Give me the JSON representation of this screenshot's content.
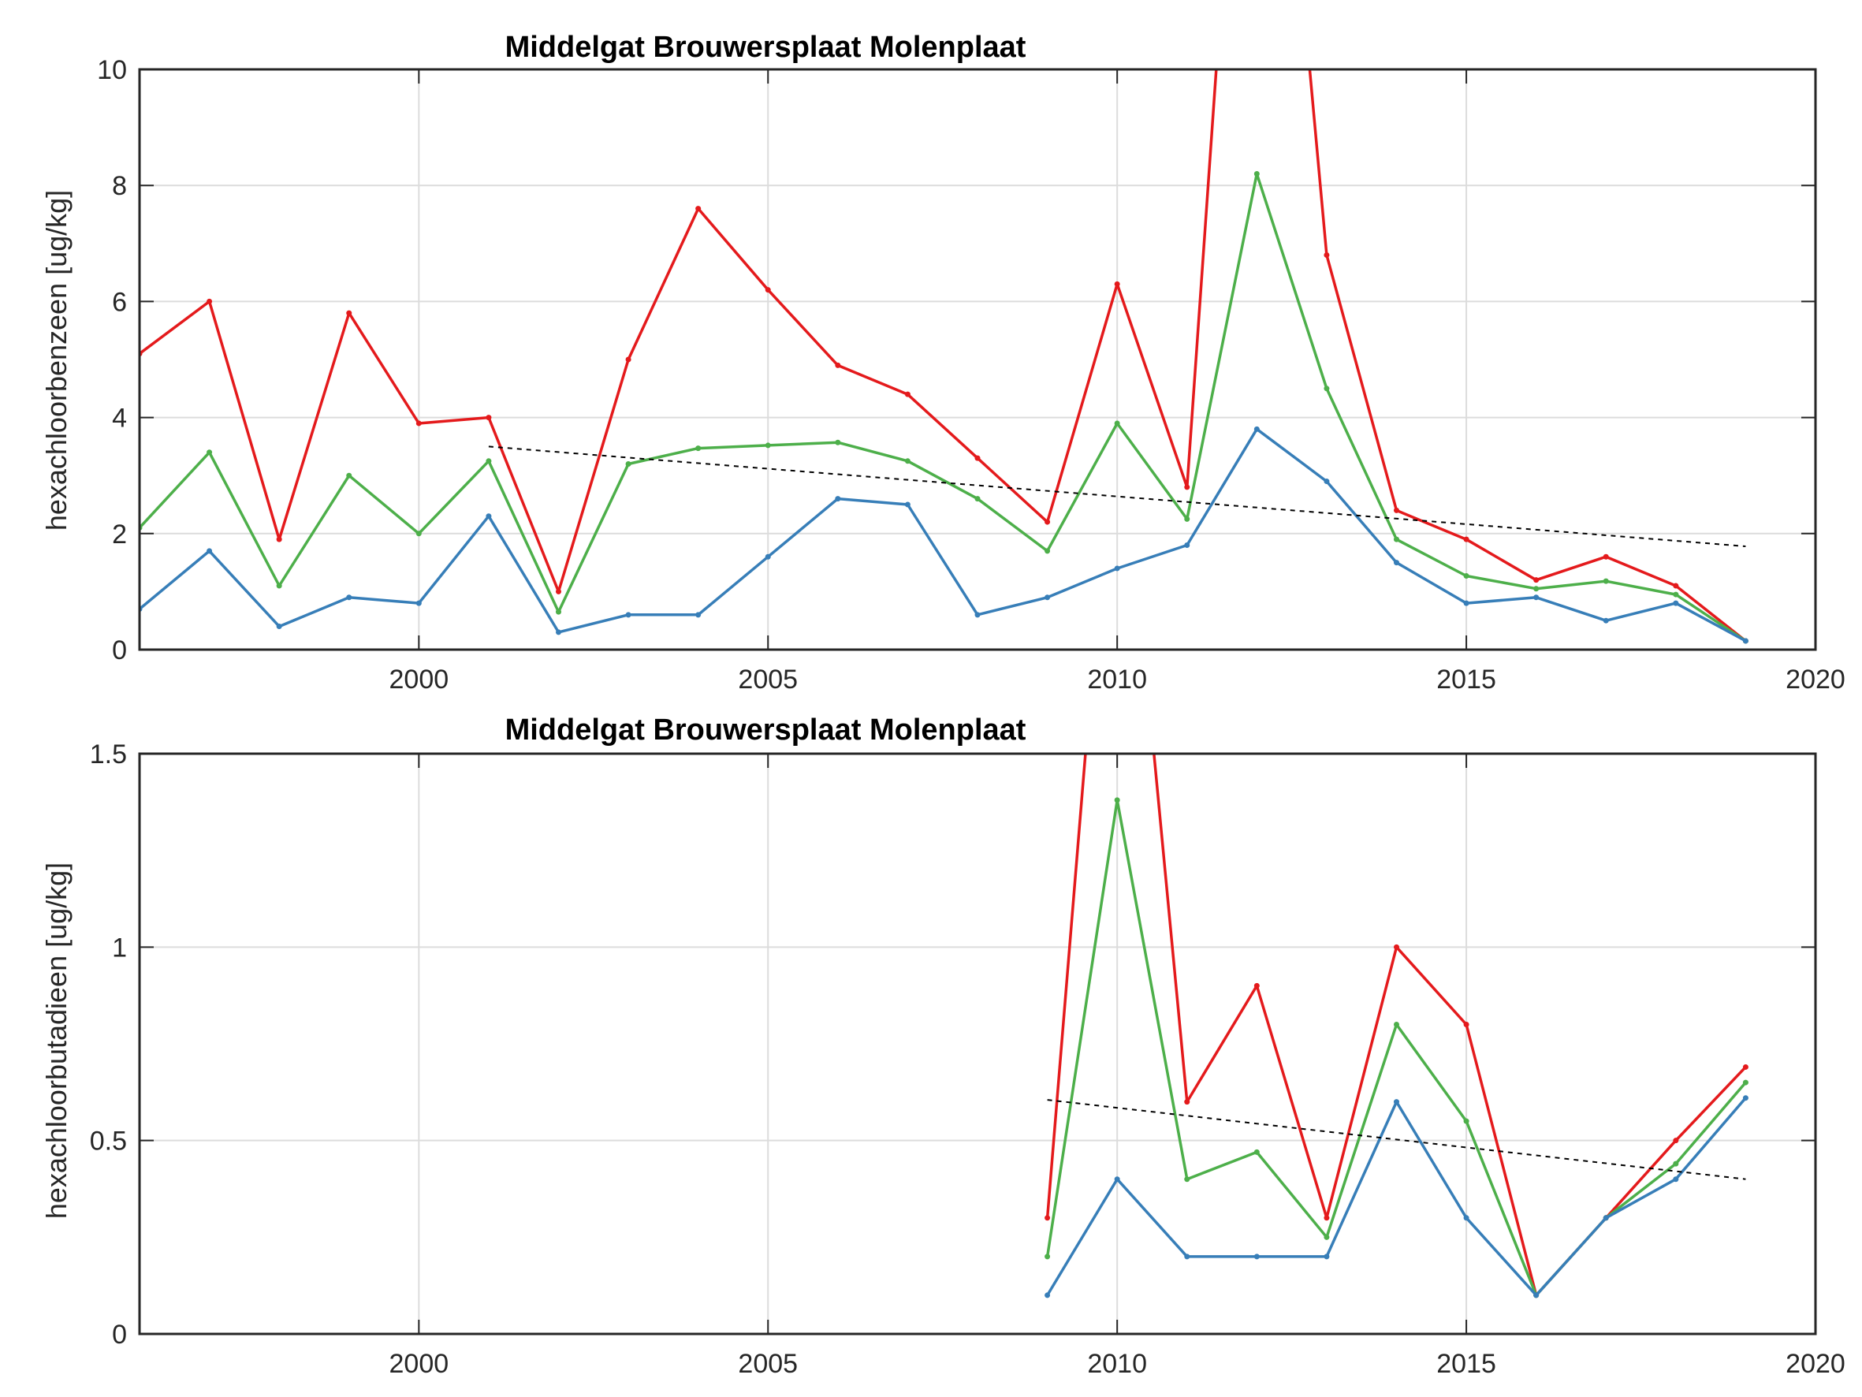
{
  "chart_data": [
    {
      "type": "line",
      "title": "Middelgat Brouwersplaat Molenplaat",
      "xlabel": "",
      "ylabel": "hexachloorbenzeen [ug/kg]",
      "xlim": [
        1996,
        2020
      ],
      "ylim": [
        0,
        10
      ],
      "xticks": [
        2000,
        2005,
        2010,
        2015,
        2020
      ],
      "yticks": [
        0,
        2,
        4,
        6,
        8,
        10
      ],
      "grid": true,
      "colors": [
        "#e41a1c",
        "#4daf4a",
        "#377eb8",
        "#000000"
      ],
      "series": [
        {
          "color": "#e41a1c",
          "x": [
            1996,
            1997,
            1998,
            1999,
            2000,
            2001,
            2002,
            2003,
            2004,
            2005,
            2006,
            2007,
            2008,
            2009,
            2010,
            2011,
            2012,
            2013,
            2014,
            2015,
            2016,
            2017,
            2018,
            2019
          ],
          "values": [
            5.1,
            6.0,
            1.9,
            5.8,
            3.9,
            4.0,
            1.0,
            5.0,
            7.6,
            6.2,
            4.9,
            4.4,
            3.3,
            2.2,
            6.3,
            2.8,
            20.0,
            6.8,
            2.4,
            1.9,
            1.2,
            1.6,
            1.1,
            0.15
          ]
        },
        {
          "color": "#4daf4a",
          "x": [
            1996,
            1997,
            1998,
            1999,
            2000,
            2001,
            2002,
            2003,
            2004,
            2005,
            2006,
            2007,
            2008,
            2009,
            2010,
            2011,
            2012,
            2013,
            2014,
            2015,
            2016,
            2017,
            2018,
            2019
          ],
          "values": [
            2.1,
            3.4,
            1.1,
            3.0,
            2.0,
            3.25,
            0.65,
            3.2,
            3.47,
            3.52,
            3.57,
            3.25,
            2.6,
            1.7,
            3.9,
            2.25,
            8.2,
            4.5,
            1.9,
            1.27,
            1.05,
            1.18,
            0.95,
            0.15
          ]
        },
        {
          "color": "#377eb8",
          "x": [
            1996,
            1997,
            1998,
            1999,
            2000,
            2001,
            2002,
            2003,
            2004,
            2005,
            2006,
            2007,
            2008,
            2009,
            2010,
            2011,
            2012,
            2013,
            2014,
            2015,
            2016,
            2017,
            2018,
            2019
          ],
          "values": [
            0.7,
            1.7,
            0.4,
            0.9,
            0.8,
            2.3,
            0.3,
            0.6,
            0.6,
            1.6,
            2.6,
            2.5,
            0.6,
            0.9,
            1.4,
            1.8,
            3.8,
            2.9,
            1.5,
            0.8,
            0.9,
            0.5,
            0.8,
            0.15
          ]
        },
        {
          "color": "#000000",
          "dashed": true,
          "x": [
            2001,
            2019
          ],
          "values": [
            3.5,
            1.78
          ]
        }
      ]
    },
    {
      "type": "line",
      "title": "Middelgat Brouwersplaat Molenplaat",
      "xlabel": "",
      "ylabel": "hexachloorbutadieen [ug/kg]",
      "xlim": [
        1996,
        2020
      ],
      "ylim": [
        0,
        1.5
      ],
      "xticks": [
        2000,
        2005,
        2010,
        2015,
        2020
      ],
      "yticks": [
        0,
        0.5,
        1,
        1.5
      ],
      "ytick_labels": [
        "0",
        "0.5",
        "1",
        "1.5"
      ],
      "grid": true,
      "colors": [
        "#e41a1c",
        "#4daf4a",
        "#377eb8",
        "#000000"
      ],
      "series": [
        {
          "color": "#e41a1c",
          "x": [
            2009,
            2010,
            2011,
            2012,
            2013,
            2014,
            2015,
            2016,
            2017,
            2018,
            2019
          ],
          "values": [
            0.3,
            2.5,
            0.6,
            0.9,
            0.3,
            1.0,
            0.8,
            0.1,
            0.3,
            0.5,
            0.69
          ]
        },
        {
          "color": "#4daf4a",
          "x": [
            2009,
            2010,
            2011,
            2012,
            2013,
            2014,
            2015,
            2016,
            2017,
            2018,
            2019
          ],
          "values": [
            0.2,
            1.38,
            0.4,
            0.47,
            0.25,
            0.8,
            0.55,
            0.1,
            0.3,
            0.44,
            0.65
          ]
        },
        {
          "color": "#377eb8",
          "x": [
            2009,
            2010,
            2011,
            2012,
            2013,
            2014,
            2015,
            2016,
            2017,
            2018,
            2019
          ],
          "values": [
            0.1,
            0.4,
            0.2,
            0.2,
            0.2,
            0.6,
            0.3,
            0.1,
            0.3,
            0.4,
            0.61
          ]
        },
        {
          "color": "#000000",
          "dashed": true,
          "x": [
            2009,
            2019
          ],
          "values": [
            0.605,
            0.4
          ]
        }
      ]
    }
  ]
}
